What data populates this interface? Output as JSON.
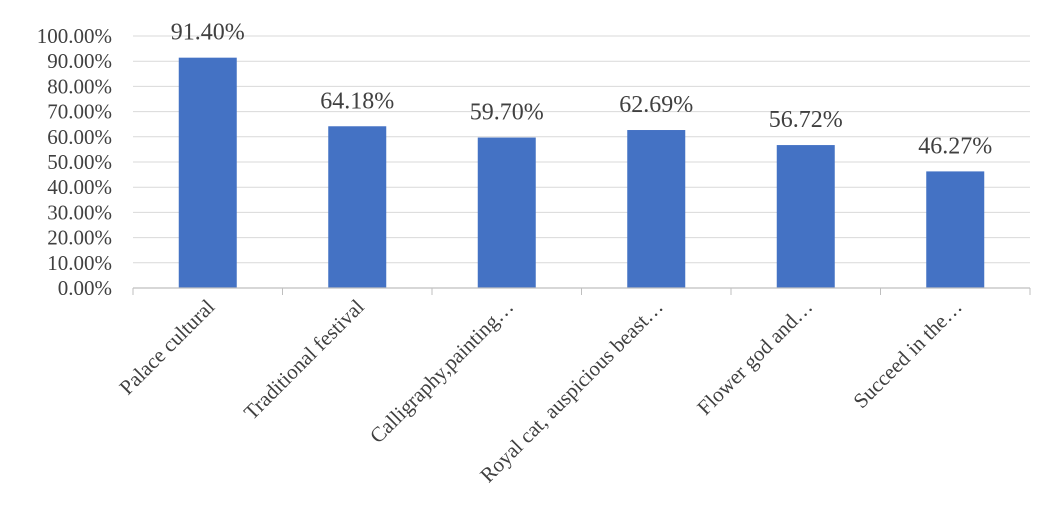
{
  "chart_data": {
    "type": "bar",
    "categories": [
      "Palace cultural",
      "Traditional festival",
      "Calligraphy,painting…",
      "Royal cat, auspicious beast…",
      "Flower god and…",
      "Succeed in the…"
    ],
    "values": [
      91.4,
      64.18,
      59.7,
      62.69,
      56.72,
      46.27
    ],
    "data_labels": [
      "91.40%",
      "64.18%",
      "59.70%",
      "62.69%",
      "56.72%",
      "46.27%"
    ],
    "ylim": [
      0,
      100
    ],
    "y_ticks": [
      0,
      10,
      20,
      30,
      40,
      50,
      60,
      70,
      80,
      90,
      100
    ],
    "y_tick_labels": [
      "0.00%",
      "10.00%",
      "20.00%",
      "30.00%",
      "40.00%",
      "50.00%",
      "60.00%",
      "70.00%",
      "80.00%",
      "90.00%",
      "100.00%"
    ],
    "title": "",
    "xlabel": "",
    "ylabel": "",
    "grid": true,
    "legend": "none",
    "bar_color": "#4472C4"
  }
}
